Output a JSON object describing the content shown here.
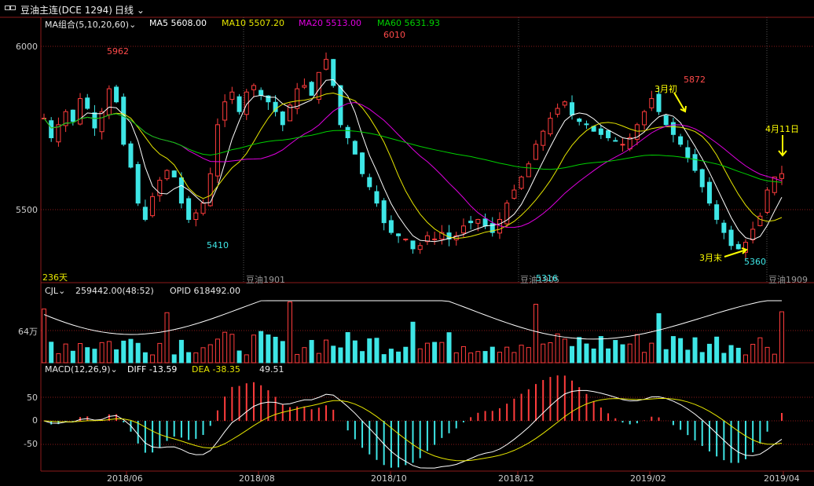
{
  "header": {
    "symbol": "豆油主连(DCE 1294)",
    "period": "日线"
  },
  "ma_legend": {
    "title": "MA组合(5,10,20,60)",
    "items": [
      {
        "text": "MA5 5608.00",
        "color": "#ffffff"
      },
      {
        "text": "MA10 5507.20",
        "color": "#e6e600"
      },
      {
        "text": "MA20 5513.00",
        "color": "#e000e0"
      },
      {
        "text": "MA60 5631.93",
        "color": "#00d000"
      }
    ]
  },
  "vol_legend": {
    "title": "CJL",
    "value": "259442.00(48:52)",
    "oi": "OPID 618492.00",
    "unit_label": "64万"
  },
  "macd_legend": {
    "title": "MACD(12,26,9)",
    "diff": "DIFF -13.59",
    "dea": "DEA -38.35",
    "macd": "49.51"
  },
  "days_label": "236天",
  "contracts": [
    "豆油1901",
    "豆油1905",
    "豆油1909"
  ],
  "colors": {
    "up": "#ff3c3c",
    "down": "#3ee6e6",
    "ma5": "#ffffff",
    "ma10": "#e6e600",
    "ma20": "#e000e0",
    "ma60": "#00d000",
    "grid": "#8b1a1a",
    "axis": "#8b1a1a"
  },
  "chart_data": {
    "type": "candlestick",
    "y_axis": {
      "ticks": [
        6000,
        5500
      ],
      "range": [
        5300,
        6010
      ]
    },
    "x_ticks": [
      "2018/06",
      "2018/08",
      "2018/10",
      "2018/12",
      "2019/02",
      "2019/04"
    ],
    "extremes": [
      {
        "label": "5962",
        "kind": "high"
      },
      {
        "label": "5410",
        "kind": "low"
      },
      {
        "label": "6010",
        "kind": "high"
      },
      {
        "label": "5316",
        "kind": "low"
      },
      {
        "label": "5872",
        "kind": "high"
      },
      {
        "label": "5360",
        "kind": "low"
      }
    ],
    "annotations": [
      {
        "text": "3月初"
      },
      {
        "text": "3月末"
      },
      {
        "text": "4月11日"
      }
    ],
    "close_path": [
      5780,
      5720,
      5760,
      5800,
      5770,
      5840,
      5810,
      5750,
      5800,
      5870,
      5830,
      5700,
      5630,
      5520,
      5470,
      5540,
      5590,
      5620,
      5600,
      5520,
      5470,
      5490,
      5520,
      5610,
      5760,
      5830,
      5860,
      5800,
      5860,
      5880,
      5850,
      5830,
      5800,
      5760,
      5820,
      5870,
      5880,
      5850,
      5920,
      5960,
      5880,
      5760,
      5720,
      5670,
      5610,
      5570,
      5520,
      5460,
      5430,
      5420,
      5410,
      5380,
      5390,
      5420,
      5410,
      5430,
      5410,
      5420,
      5450,
      5460,
      5470,
      5450,
      5430,
      5470,
      5520,
      5560,
      5600,
      5640,
      5700,
      5740,
      5780,
      5810,
      5830,
      5790,
      5770,
      5760,
      5740,
      5730,
      5720,
      5710,
      5700,
      5720,
      5760,
      5800,
      5840,
      5800,
      5760,
      5730,
      5700,
      5660,
      5620,
      5570,
      5520,
      5470,
      5430,
      5390,
      5380,
      5400,
      5440,
      5480,
      5560,
      5600,
      5610
    ],
    "macd_ticks": [
      50,
      0,
      -50
    ],
    "volume_unit_tick": "64万"
  }
}
